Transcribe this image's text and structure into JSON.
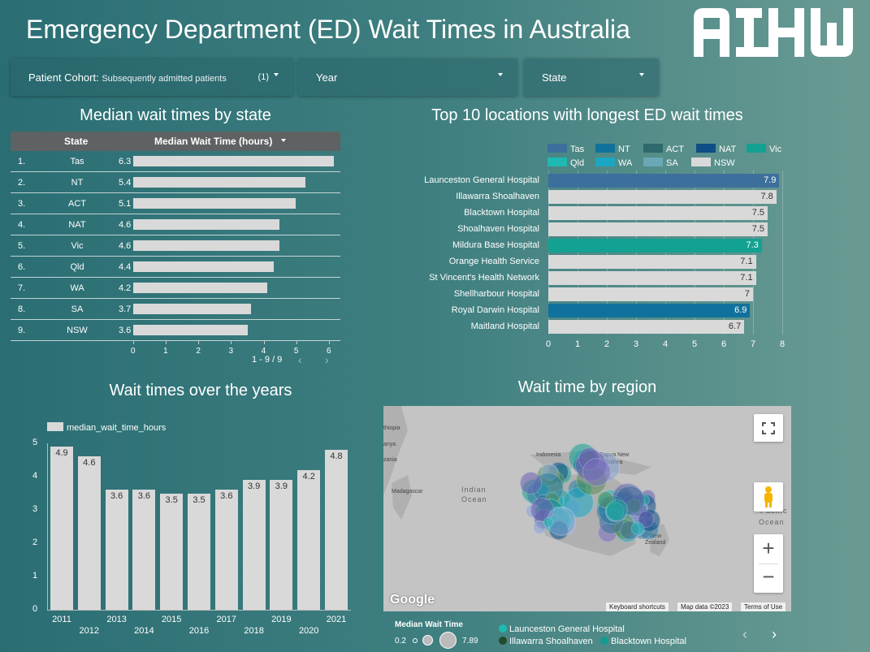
{
  "header": {
    "title": "Emergency Department (ED) Wait Times in Australia",
    "logo": "AIHW"
  },
  "filters": [
    {
      "label": "Patient Cohort",
      "value": "Subsequently admitted patients",
      "count": "(1)"
    },
    {
      "label": "Year"
    },
    {
      "label": "State"
    }
  ],
  "colors": {
    "Tas": "#3d6f9c",
    "NT": "#10729c",
    "ACT": "#2e6a6c",
    "NAT": "#0e4d85",
    "Vic": "#13a191",
    "Qld": "#1fb9b4",
    "WA": "#1ba7c4",
    "SA": "#6aa8b6",
    "NSW": "#d9d9d9"
  },
  "chart_data": [
    {
      "type": "table",
      "title": "Median wait times by state",
      "columns": [
        "State",
        "Median Wait Time (hours)"
      ],
      "rows": [
        {
          "rank": "1.",
          "state": "Tas",
          "value": 6.3
        },
        {
          "rank": "2.",
          "state": "NT",
          "value": 5.4
        },
        {
          "rank": "3.",
          "state": "ACT",
          "value": 5.1
        },
        {
          "rank": "4.",
          "state": "NAT",
          "value": 4.6
        },
        {
          "rank": "5.",
          "state": "Vic",
          "value": 4.6
        },
        {
          "rank": "6.",
          "state": "Qld",
          "value": 4.4
        },
        {
          "rank": "7.",
          "state": "WA",
          "value": 4.2
        },
        {
          "rank": "8.",
          "state": "SA",
          "value": 3.7
        },
        {
          "rank": "9.",
          "state": "NSW",
          "value": 3.6
        }
      ],
      "xticks": [
        0,
        1,
        2,
        3,
        4,
        5,
        6
      ],
      "xlim": [
        0,
        6.3
      ],
      "pagination": "1 - 9 / 9"
    },
    {
      "type": "bar",
      "title": "Top 10 locations with longest ED wait times",
      "legend": [
        "Tas",
        "NT",
        "ACT",
        "NAT",
        "Vic",
        "Qld",
        "WA",
        "SA",
        "NSW"
      ],
      "categories": [
        "Launceston General Hospital",
        "Illawarra Shoalhaven",
        "Blacktown Hospital",
        "Shoalhaven Hospital",
        "Mildura Base Hospital",
        "Orange Health Service",
        "St Vincent's Health Network",
        "Shellharbour Hospital",
        "Royal Darwin Hospital",
        "Maitland Hospital"
      ],
      "values": [
        7.9,
        7.8,
        7.5,
        7.5,
        7.3,
        7.1,
        7.1,
        7,
        6.9,
        6.7
      ],
      "states": [
        "Tas",
        "NSW",
        "NSW",
        "NSW",
        "Vic",
        "NSW",
        "NSW",
        "NSW",
        "NT",
        "NSW"
      ],
      "xlim": [
        0,
        8
      ],
      "xticks": [
        0,
        1,
        2,
        3,
        4,
        5,
        6,
        7,
        8
      ]
    },
    {
      "type": "bar",
      "title": "Wait times over the years",
      "series_name": "median_wait_time_hours",
      "categories": [
        "2011",
        "2012",
        "2013",
        "2014",
        "2015",
        "2016",
        "2017",
        "2018",
        "2019",
        "2020",
        "2021"
      ],
      "values": [
        4.9,
        4.6,
        3.6,
        3.6,
        3.5,
        3.5,
        3.6,
        3.9,
        3.9,
        4.2,
        4.8
      ],
      "ylim": [
        0,
        5
      ],
      "yticks": [
        0,
        1,
        2,
        3,
        4,
        5
      ]
    }
  ],
  "map": {
    "title": "Wait time by region",
    "labels": [
      "thiopia",
      "anya",
      "zania",
      "Madagascar",
      "Indian",
      "Ocean",
      "Indonesia",
      "Papua New",
      "Guinea",
      "New",
      "Zealand",
      "Pacific",
      "Ocean"
    ],
    "footer": {
      "shortcuts": "Keyboard shortcuts",
      "mapdata": "Map data ©2023",
      "terms": "Terms of Use",
      "brand": "Google"
    },
    "legend_title": "Median Wait Time",
    "legend_min": "0.2",
    "legend_max": "7.89",
    "legend_hospitals": [
      "Launceston General Hospital",
      "Illawarra Shoalhaven",
      "Blacktown Hospital"
    ],
    "legend_colors": [
      "#1fb9b4",
      "#234a2a",
      "#139c94"
    ]
  }
}
